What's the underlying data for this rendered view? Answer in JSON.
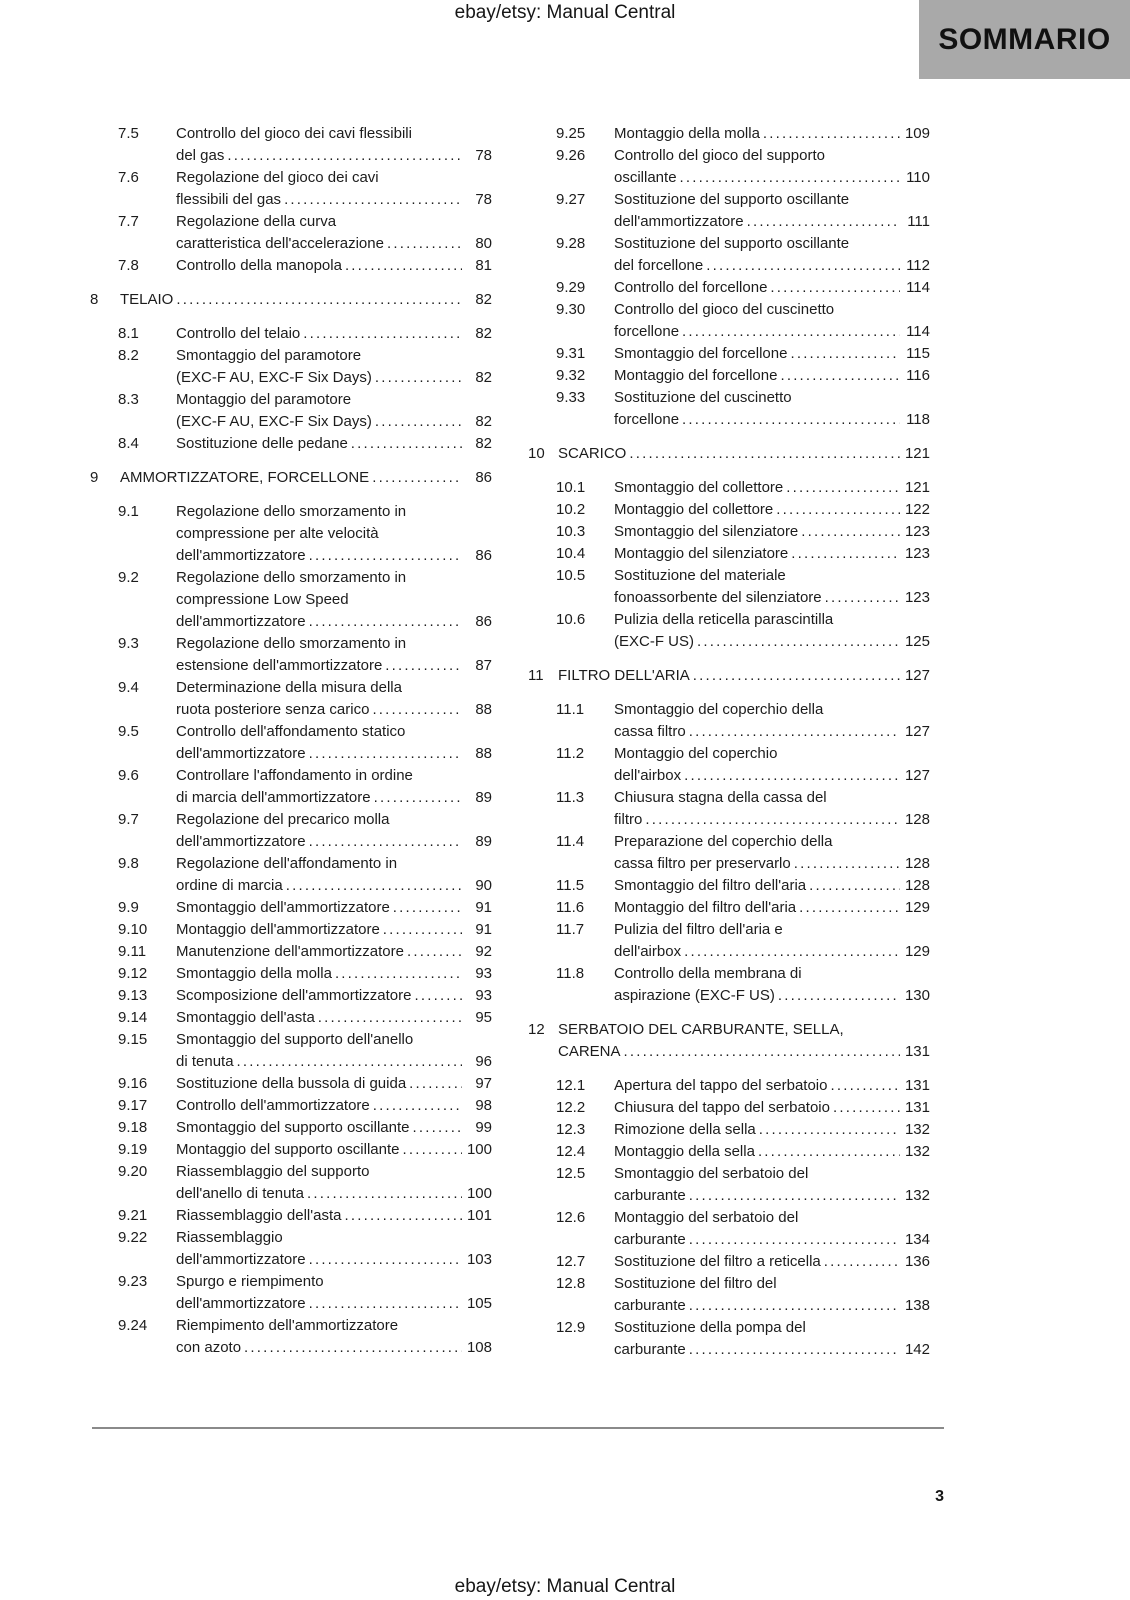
{
  "header": {
    "doc_title": "ebay/etsy: Manual Central",
    "page_label": "SOMMARIO"
  },
  "footer": {
    "doc_title": "ebay/etsy: Manual Central",
    "page_number": "3"
  },
  "colors": {
    "label_box_bg": "#a9a9a9",
    "text_color": "#1c1c1c",
    "rule_color": "#8a8a8a"
  },
  "toc": {
    "left_column": [
      {
        "type": "section",
        "num": "7.5",
        "lines": [
          "Controllo del gioco dei cavi flessibili",
          "del gas"
        ],
        "page": "78"
      },
      {
        "type": "section",
        "num": "7.6",
        "lines": [
          "Regolazione del gioco dei cavi",
          "flessibili del gas"
        ],
        "page": "78"
      },
      {
        "type": "section",
        "num": "7.7",
        "lines": [
          "Regolazione della curva",
          "caratteristica dell'accelerazione"
        ],
        "page": "80"
      },
      {
        "type": "section",
        "num": "7.8",
        "lines": [
          "Controllo della manopola"
        ],
        "page": "81"
      },
      {
        "type": "chapter",
        "num": "8",
        "lines": [
          "TELAIO"
        ],
        "page": "82"
      },
      {
        "type": "section",
        "num": "8.1",
        "lines": [
          "Controllo del telaio"
        ],
        "page": "82"
      },
      {
        "type": "section",
        "num": "8.2",
        "lines": [
          "Smontaggio del paramotore",
          "(EXC-F AU, EXC-F Six Days)"
        ],
        "page": "82"
      },
      {
        "type": "section",
        "num": "8.3",
        "lines": [
          "Montaggio del paramotore",
          "(EXC-F AU, EXC-F Six Days)"
        ],
        "page": "82"
      },
      {
        "type": "section",
        "num": "8.4",
        "lines": [
          "Sostituzione delle pedane"
        ],
        "page": "82"
      },
      {
        "type": "chapter",
        "num": "9",
        "lines": [
          "AMMORTIZZATORE, FORCELLONE"
        ],
        "page": "86"
      },
      {
        "type": "section",
        "num": "9.1",
        "lines": [
          "Regolazione dello smorzamento in",
          "compressione per alte velocità",
          "dell'ammortizzatore"
        ],
        "page": "86"
      },
      {
        "type": "section",
        "num": "9.2",
        "lines": [
          "Regolazione dello smorzamento in",
          "compressione Low Speed",
          "dell'ammortizzatore"
        ],
        "page": "86"
      },
      {
        "type": "section",
        "num": "9.3",
        "lines": [
          "Regolazione dello smorzamento in",
          "estensione dell'ammortizzatore"
        ],
        "page": "87"
      },
      {
        "type": "section",
        "num": "9.4",
        "lines": [
          "Determinazione della misura della",
          "ruota posteriore senza carico"
        ],
        "page": "88"
      },
      {
        "type": "section",
        "num": "9.5",
        "lines": [
          "Controllo dell'affondamento statico",
          "dell'ammortizzatore"
        ],
        "page": "88"
      },
      {
        "type": "section",
        "num": "9.6",
        "lines": [
          "Controllare l'affondamento in ordine",
          "di marcia dell'ammortizzatore"
        ],
        "page": "89"
      },
      {
        "type": "section",
        "num": "9.7",
        "lines": [
          "Regolazione del precarico molla",
          "dell'ammortizzatore"
        ],
        "page": "89"
      },
      {
        "type": "section",
        "num": "9.8",
        "lines": [
          "Regolazione dell'affondamento in",
          "ordine di marcia"
        ],
        "page": "90"
      },
      {
        "type": "section",
        "num": "9.9",
        "lines": [
          "Smontaggio dell'ammortizzatore"
        ],
        "page": "91"
      },
      {
        "type": "section",
        "num": "9.10",
        "lines": [
          "Montaggio dell'ammortizzatore"
        ],
        "page": "91"
      },
      {
        "type": "section",
        "num": "9.11",
        "lines": [
          "Manutenzione dell'ammortizzatore"
        ],
        "page": "92"
      },
      {
        "type": "section",
        "num": "9.12",
        "lines": [
          "Smontaggio della molla"
        ],
        "page": "93"
      },
      {
        "type": "section",
        "num": "9.13",
        "lines": [
          "Scomposizione dell'ammortizzatore"
        ],
        "page": "93"
      },
      {
        "type": "section",
        "num": "9.14",
        "lines": [
          "Smontaggio dell'asta"
        ],
        "page": "95"
      },
      {
        "type": "section",
        "num": "9.15",
        "lines": [
          "Smontaggio del supporto dell'anello",
          "di tenuta"
        ],
        "page": "96"
      },
      {
        "type": "section",
        "num": "9.16",
        "lines": [
          "Sostituzione della bussola di guida"
        ],
        "page": "97"
      },
      {
        "type": "section",
        "num": "9.17",
        "lines": [
          "Controllo dell'ammortizzatore"
        ],
        "page": "98"
      },
      {
        "type": "section",
        "num": "9.18",
        "lines": [
          "Smontaggio del supporto oscillante"
        ],
        "page": "99"
      },
      {
        "type": "section",
        "num": "9.19",
        "lines": [
          "Montaggio del supporto oscillante"
        ],
        "page": "100"
      },
      {
        "type": "section",
        "num": "9.20",
        "lines": [
          "Riassemblaggio del supporto",
          "dell'anello di tenuta"
        ],
        "page": "100"
      },
      {
        "type": "section",
        "num": "9.21",
        "lines": [
          "Riassemblaggio dell'asta"
        ],
        "page": "101"
      },
      {
        "type": "section",
        "num": "9.22",
        "lines": [
          "Riassemblaggio",
          "dell'ammortizzatore"
        ],
        "page": "103"
      },
      {
        "type": "section",
        "num": "9.23",
        "lines": [
          "Spurgo e riempimento",
          "dell'ammortizzatore"
        ],
        "page": "105"
      },
      {
        "type": "section",
        "num": "9.24",
        "lines": [
          "Riempimento dell'ammortizzatore",
          "con azoto"
        ],
        "page": "108"
      }
    ],
    "right_column": [
      {
        "type": "section",
        "num": "9.25",
        "lines": [
          "Montaggio della molla"
        ],
        "page": "109"
      },
      {
        "type": "section",
        "num": "9.26",
        "lines": [
          "Controllo del gioco del supporto",
          "oscillante"
        ],
        "page": "110"
      },
      {
        "type": "section",
        "num": "9.27",
        "lines": [
          "Sostituzione del supporto oscillante",
          "dell'ammortizzatore"
        ],
        "page": "111"
      },
      {
        "type": "section",
        "num": "9.28",
        "lines": [
          "Sostituzione del supporto oscillante",
          "del forcellone"
        ],
        "page": "112"
      },
      {
        "type": "section",
        "num": "9.29",
        "lines": [
          "Controllo del forcellone"
        ],
        "page": "114"
      },
      {
        "type": "section",
        "num": "9.30",
        "lines": [
          "Controllo del gioco del cuscinetto",
          "forcellone"
        ],
        "page": "114"
      },
      {
        "type": "section",
        "num": "9.31",
        "lines": [
          "Smontaggio del forcellone"
        ],
        "page": "115"
      },
      {
        "type": "section",
        "num": "9.32",
        "lines": [
          "Montaggio del forcellone"
        ],
        "page": "116"
      },
      {
        "type": "section",
        "num": "9.33",
        "lines": [
          "Sostituzione del cuscinetto",
          "forcellone"
        ],
        "page": "118"
      },
      {
        "type": "chapter",
        "num": "10",
        "lines": [
          "SCARICO"
        ],
        "page": "121"
      },
      {
        "type": "section",
        "num": "10.1",
        "lines": [
          "Smontaggio del collettore"
        ],
        "page": "121"
      },
      {
        "type": "section",
        "num": "10.2",
        "lines": [
          "Montaggio del collettore"
        ],
        "page": "122"
      },
      {
        "type": "section",
        "num": "10.3",
        "lines": [
          "Smontaggio del silenziatore"
        ],
        "page": "123"
      },
      {
        "type": "section",
        "num": "10.4",
        "lines": [
          "Montaggio del silenziatore"
        ],
        "page": "123"
      },
      {
        "type": "section",
        "num": "10.5",
        "lines": [
          "Sostituzione del materiale",
          "fonoassorbente del silenziatore"
        ],
        "page": "123"
      },
      {
        "type": "section",
        "num": "10.6",
        "lines": [
          "Pulizia della reticella parascintilla",
          "(EXC-F US)"
        ],
        "page": "125"
      },
      {
        "type": "chapter",
        "num": "11",
        "lines": [
          "FILTRO DELL'ARIA"
        ],
        "page": "127"
      },
      {
        "type": "section",
        "num": "11.1",
        "lines": [
          "Smontaggio del coperchio della",
          "cassa filtro"
        ],
        "page": "127"
      },
      {
        "type": "section",
        "num": "11.2",
        "lines": [
          "Montaggio del coperchio",
          "dell'airbox"
        ],
        "page": "127"
      },
      {
        "type": "section",
        "num": "11.3",
        "lines": [
          "Chiusura stagna della cassa del",
          "filtro"
        ],
        "page": "128"
      },
      {
        "type": "section",
        "num": "11.4",
        "lines": [
          "Preparazione del coperchio della",
          "cassa filtro per preservarlo"
        ],
        "page": "128"
      },
      {
        "type": "section",
        "num": "11.5",
        "lines": [
          "Smontaggio del filtro dell'aria"
        ],
        "page": "128"
      },
      {
        "type": "section",
        "num": "11.6",
        "lines": [
          "Montaggio del filtro dell'aria"
        ],
        "page": "129"
      },
      {
        "type": "section",
        "num": "11.7",
        "lines": [
          "Pulizia del filtro dell'aria e",
          "dell'airbox"
        ],
        "page": "129"
      },
      {
        "type": "section",
        "num": "11.8",
        "lines": [
          "Controllo della membrana di",
          "aspirazione (EXC-F US)"
        ],
        "page": "130"
      },
      {
        "type": "chapter",
        "num": "12",
        "lines": [
          "SERBATOIO DEL CARBURANTE, SELLA,",
          "CARENA"
        ],
        "page": "131"
      },
      {
        "type": "section",
        "num": "12.1",
        "lines": [
          "Apertura del tappo del serbatoio"
        ],
        "page": "131"
      },
      {
        "type": "section",
        "num": "12.2",
        "lines": [
          "Chiusura del tappo del serbatoio"
        ],
        "page": "131"
      },
      {
        "type": "section",
        "num": "12.3",
        "lines": [
          "Rimozione della sella"
        ],
        "page": "132"
      },
      {
        "type": "section",
        "num": "12.4",
        "lines": [
          "Montaggio della sella"
        ],
        "page": "132"
      },
      {
        "type": "section",
        "num": "12.5",
        "lines": [
          "Smontaggio del serbatoio del",
          "carburante"
        ],
        "page": "132"
      },
      {
        "type": "section",
        "num": "12.6",
        "lines": [
          "Montaggio del serbatoio del",
          "carburante"
        ],
        "page": "134"
      },
      {
        "type": "section",
        "num": "12.7",
        "lines": [
          "Sostituzione del filtro a reticella"
        ],
        "page": "136"
      },
      {
        "type": "section",
        "num": "12.8",
        "lines": [
          "Sostituzione del filtro del",
          "carburante"
        ],
        "page": "138"
      },
      {
        "type": "section",
        "num": "12.9",
        "lines": [
          "Sostituzione della pompa del",
          "carburante"
        ],
        "page": "142"
      }
    ]
  }
}
